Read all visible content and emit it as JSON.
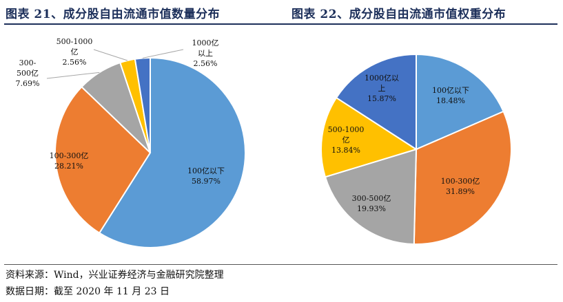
{
  "titles": {
    "left": "图表 21、成分股自由流通市值数量分布",
    "right": "图表 22、成分股自由流通市值权重分布"
  },
  "notes": {
    "source": "资料来源：Wind，兴业证券经济与金融研究院整理",
    "date": "数据日期：截至 2020 年 11 月 23 日"
  },
  "chart_data": [
    {
      "type": "pie",
      "title": "图表 21、成分股自由流通市值数量分布",
      "slices": [
        {
          "label": "100亿以下",
          "lines": [
            "100亿以下",
            "58.97%"
          ],
          "value": 58.97,
          "color": "#5b9bd5"
        },
        {
          "label": "100-300亿",
          "lines": [
            "100-300亿",
            "28.21%"
          ],
          "value": 28.21,
          "color": "#ed7d31"
        },
        {
          "label": "300-500亿",
          "lines": [
            "300-",
            "500亿",
            "7.69%"
          ],
          "value": 7.69,
          "color": "#a5a5a5"
        },
        {
          "label": "500-1000亿",
          "lines": [
            "500-1000",
            "亿",
            "2.56%"
          ],
          "value": 2.56,
          "color": "#ffc000"
        },
        {
          "label": "1000亿以上",
          "lines": [
            "1000亿",
            "以上",
            "2.56%"
          ],
          "value": 2.56,
          "color": "#4472c4"
        }
      ],
      "start": "12 o'clock",
      "direction": "clockwise"
    },
    {
      "type": "pie",
      "title": "图表 22、成分股自由流通市值权重分布",
      "slices": [
        {
          "label": "100亿以下",
          "lines": [
            "100亿以下",
            "18.48%"
          ],
          "value": 18.48,
          "color": "#5b9bd5"
        },
        {
          "label": "100-300亿",
          "lines": [
            "100-300亿",
            "31.89%"
          ],
          "value": 31.89,
          "color": "#ed7d31"
        },
        {
          "label": "300-500亿",
          "lines": [
            "300-500亿",
            "19.93%"
          ],
          "value": 19.93,
          "color": "#a5a5a5"
        },
        {
          "label": "500-1000亿",
          "lines": [
            "500-1000",
            "亿",
            "13.84%"
          ],
          "value": 13.84,
          "color": "#ffc000"
        },
        {
          "label": "1000亿以上",
          "lines": [
            "1000亿以",
            "上",
            "15.87%"
          ],
          "value": 15.87,
          "color": "#4472c4"
        }
      ],
      "start": "12 o'clock",
      "direction": "clockwise"
    }
  ]
}
